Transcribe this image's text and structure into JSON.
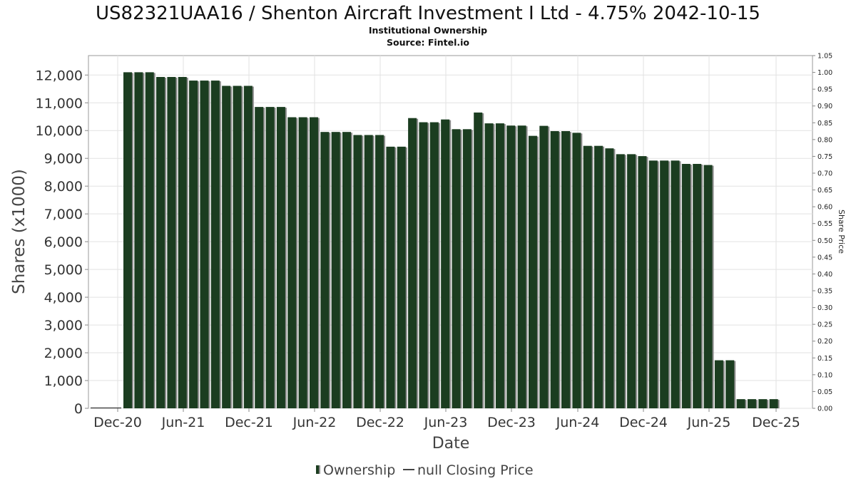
{
  "chart_data": {
    "type": "bar",
    "title": "US82321UAA16 / Shenton Aircraft Investment I Ltd - 4.75% 2042-10-15",
    "subtitle": "Institutional Ownership",
    "source": "Source: Fintel.io",
    "xlabel": "Date",
    "ylabel": "Shares (x1000)",
    "y2label": "Share Price",
    "ylim": [
      0,
      12700
    ],
    "y2lim": [
      0,
      1.05
    ],
    "yticks": [
      "0",
      "1,000",
      "2,000",
      "3,000",
      "4,000",
      "5,000",
      "6,000",
      "7,000",
      "8,000",
      "9,000",
      "10,000",
      "11,000",
      "12,000"
    ],
    "y2ticks": [
      "0.00",
      "0.05",
      "0.10",
      "0.15",
      "0.20",
      "0.25",
      "0.30",
      "0.35",
      "0.40",
      "0.45",
      "0.50",
      "0.55",
      "0.60",
      "0.65",
      "0.70",
      "0.75",
      "0.80",
      "0.85",
      "0.90",
      "0.95",
      "1.00",
      "1.05"
    ],
    "xticks": [
      "Dec-20",
      "Jun-21",
      "Dec-21",
      "Jun-22",
      "Dec-22",
      "Jun-23",
      "Dec-23",
      "Jun-24",
      "Dec-24",
      "Jun-25",
      "Dec-25"
    ],
    "grid": true,
    "legend": {
      "position": "bottom",
      "items": [
        "Ownership",
        "null Closing Price"
      ]
    },
    "colors": {
      "bar": "#1b3d20",
      "bar_shadow": "#8c8c8c",
      "grid": "#e2e2e2",
      "axis": "#888888",
      "text": "#222222"
    },
    "series": [
      {
        "name": "Ownership",
        "values": [
          12100,
          12100,
          12100,
          11930,
          11930,
          11930,
          11800,
          11800,
          11800,
          11610,
          11610,
          11610,
          10850,
          10850,
          10850,
          10480,
          10480,
          10480,
          9950,
          9950,
          9950,
          9840,
          9840,
          9840,
          9420,
          9420,
          10450,
          10300,
          10300,
          10400,
          10050,
          10050,
          10650,
          10260,
          10260,
          10180,
          10180,
          9810,
          10170,
          9980,
          9980,
          9920,
          9450,
          9450,
          9360,
          9150,
          9150,
          9080,
          8920,
          8920,
          8920,
          8800,
          8800,
          8760,
          1730,
          1730,
          330,
          330,
          330,
          330
        ]
      }
    ]
  }
}
